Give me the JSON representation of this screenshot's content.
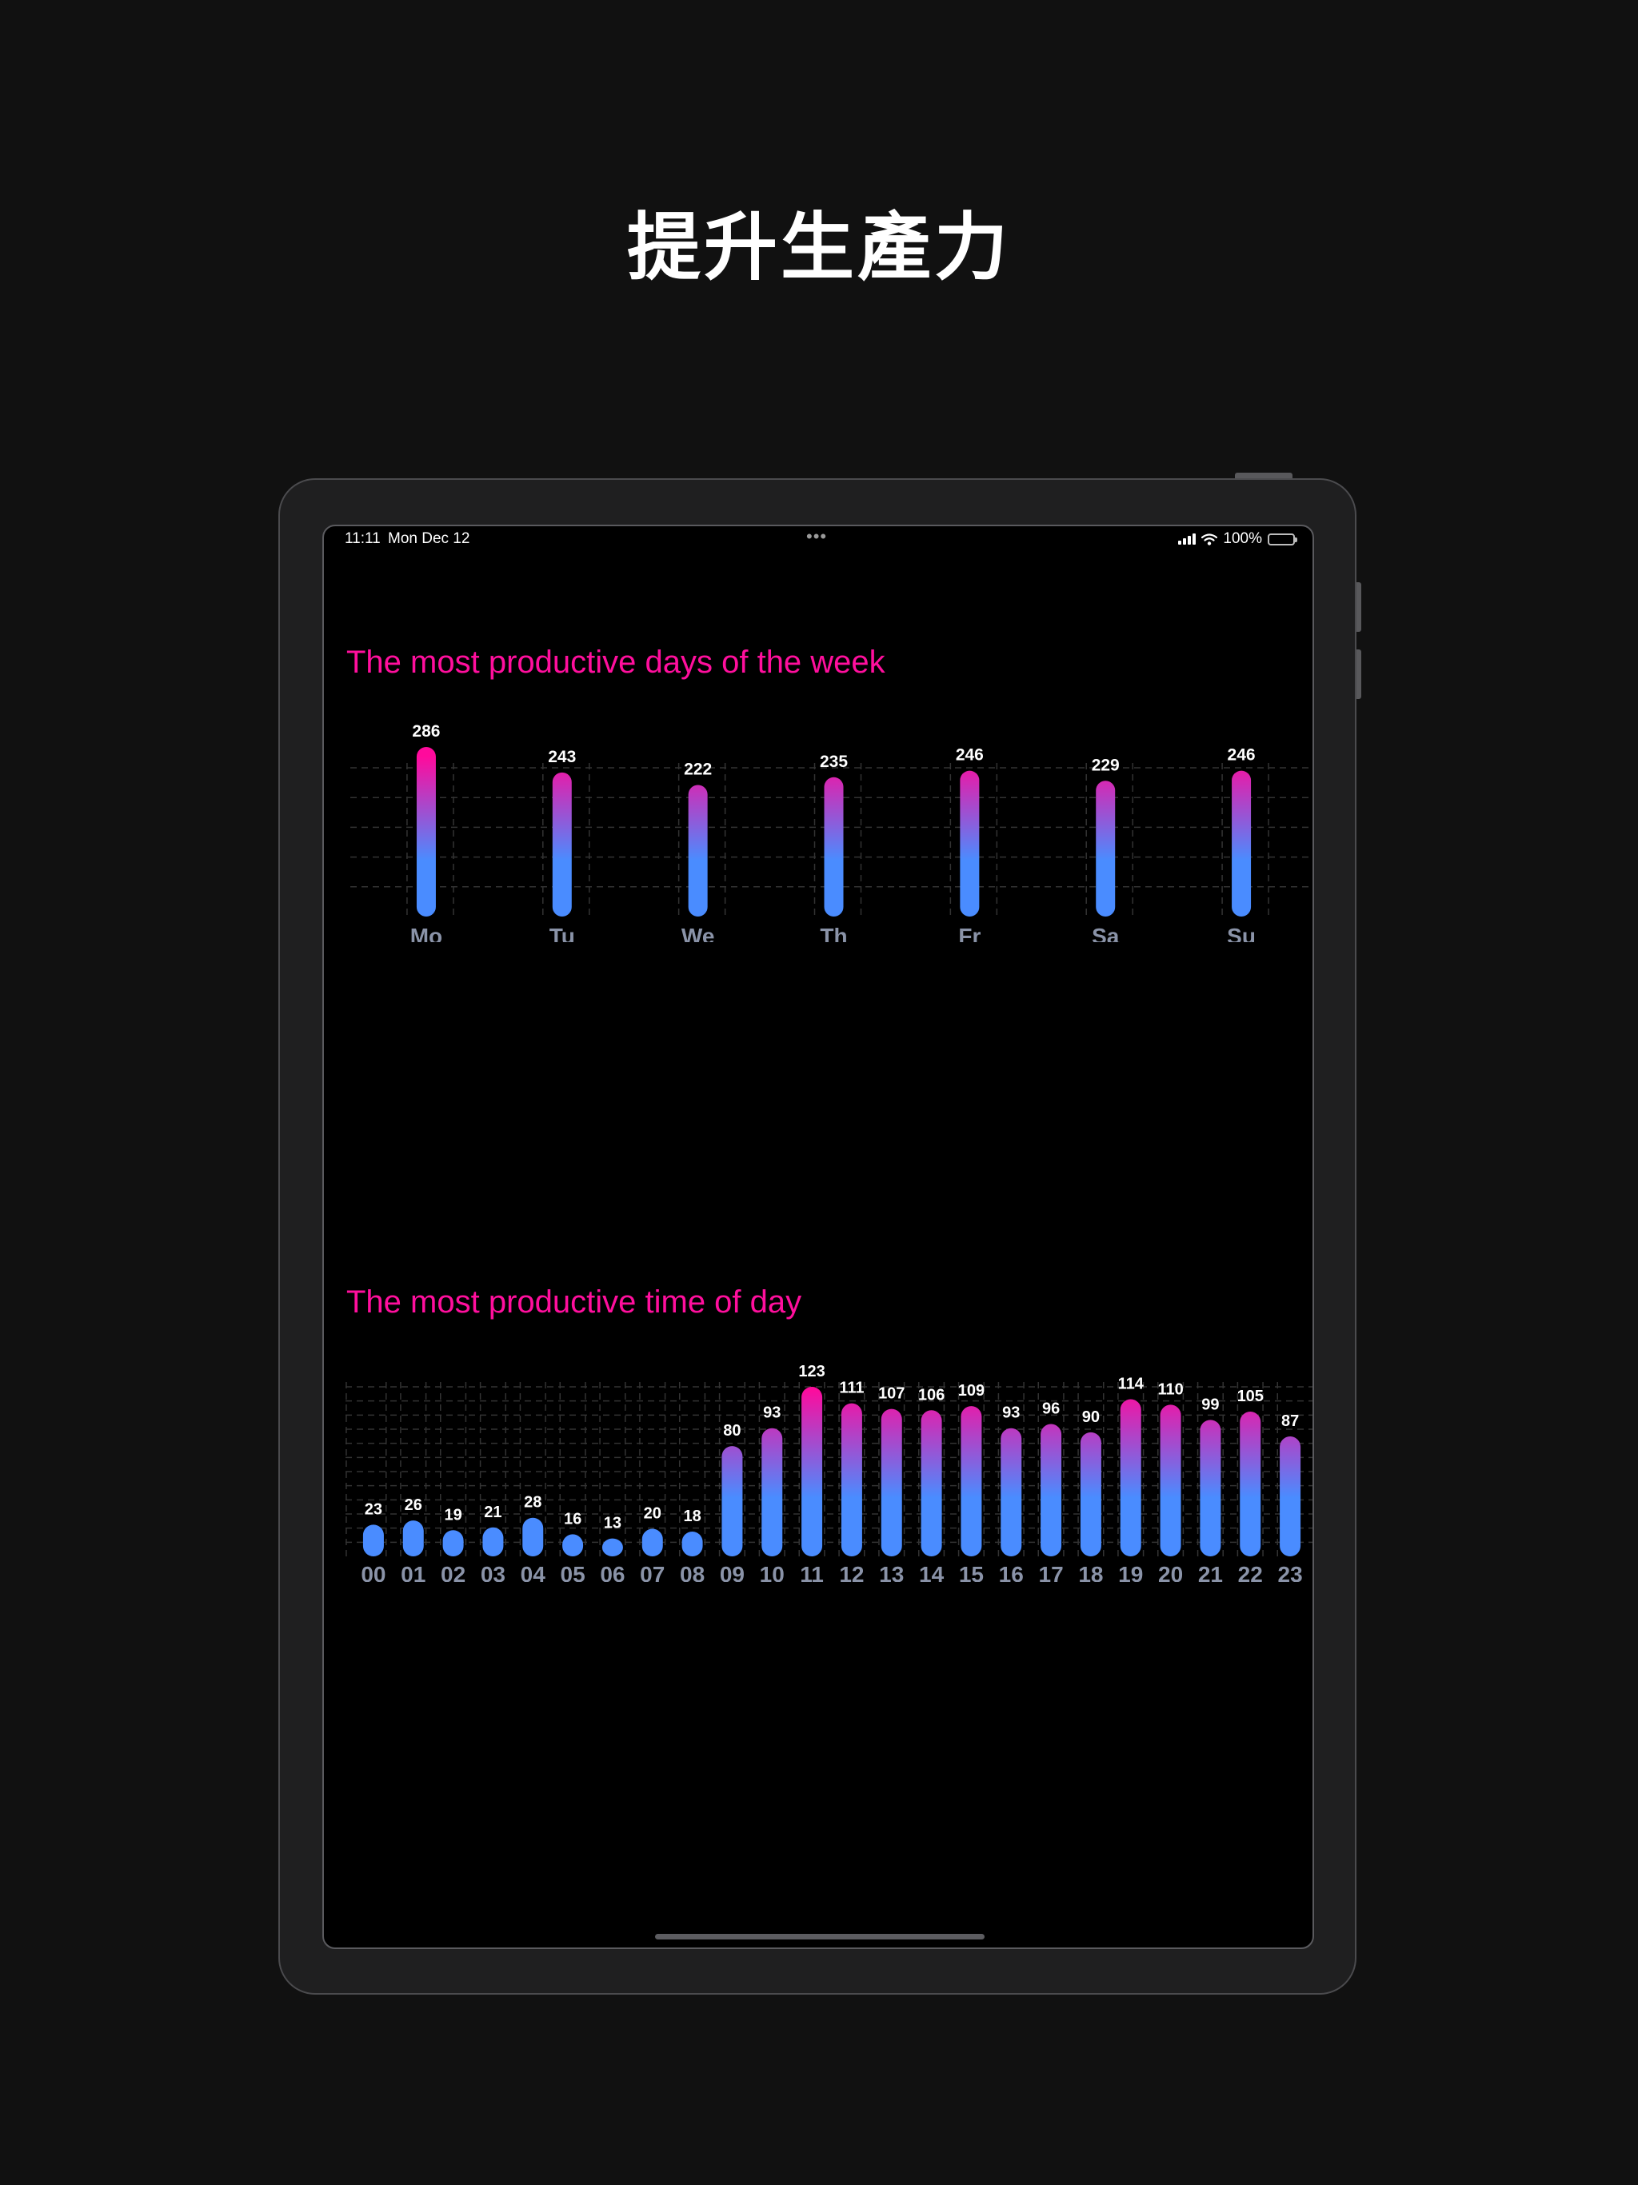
{
  "headline": "提升生產力",
  "status_bar": {
    "time": "11:11",
    "date": "Mon Dec 12",
    "battery": "100%",
    "icons": [
      "multitasking-dots-icon",
      "cellular-signal-icon",
      "wifi-icon",
      "battery-icon"
    ]
  },
  "colors": {
    "background": "#111111",
    "device_frame": "#1f1f20",
    "screen": "#000000",
    "title_pink": "#ff0f9d",
    "bar_top": "#ff0a9c",
    "bar_bottom": "#4a8cff",
    "axis_label": "#8a93a8",
    "grid": "#333333"
  },
  "chart_data": [
    {
      "type": "bar",
      "title": "The most productive days of the week",
      "categories": [
        "Mo",
        "Tu",
        "We",
        "Th",
        "Fr",
        "Sa",
        "Su"
      ],
      "values": [
        286,
        243,
        222,
        235,
        246,
        229,
        246
      ],
      "xlabel": "",
      "ylabel": "",
      "grid": true,
      "data_labels": true
    },
    {
      "type": "bar",
      "title": "The most productive time of day",
      "categories": [
        "00",
        "01",
        "02",
        "03",
        "04",
        "05",
        "06",
        "07",
        "08",
        "09",
        "10",
        "11",
        "12",
        "13",
        "14",
        "15",
        "16",
        "17",
        "18",
        "19",
        "20",
        "21",
        "22",
        "23"
      ],
      "values": [
        23,
        26,
        19,
        21,
        28,
        16,
        13,
        20,
        18,
        80,
        93,
        123,
        111,
        107,
        106,
        109,
        93,
        96,
        90,
        114,
        110,
        99,
        105,
        87
      ],
      "xlabel": "",
      "ylabel": "",
      "grid": true,
      "data_labels": true
    }
  ]
}
